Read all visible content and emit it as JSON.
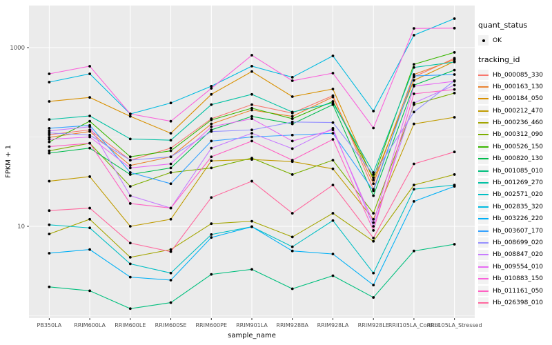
{
  "chart_data": {
    "type": "line",
    "title": "",
    "xlabel": "sample_name",
    "ylabel": "FPKM + 1",
    "y_scale": "log10",
    "y_ticks": [
      10,
      1000
    ],
    "y_minor_gridlines": [
      1,
      100
    ],
    "ylim": [
      0.92,
      2950
    ],
    "grid": "white gridlines on gray panel",
    "legend_position": "right",
    "point_marker_color": "#000000",
    "categories": [
      "PB350LA",
      "RRIM600LA",
      "RRIM600LE",
      "RRIM600SE",
      "RRIM600PE",
      "RRIM901LA",
      "RRIM928BA",
      "RRIM928LA",
      "RRIM928LE",
      "RRII105LA_Control",
      "RRII105LA_Stressed"
    ],
    "series": [
      {
        "name": "Hb_000085_330",
        "color": "#F8766D",
        "values": [
          106,
          120,
          55,
          75,
          160,
          230,
          185,
          290,
          26,
          470,
          760
        ]
      },
      {
        "name": "Hb_000163_130",
        "color": "#EA8331",
        "values": [
          99,
          115,
          48,
          60,
          140,
          200,
          170,
          280,
          30,
          500,
          735
        ]
      },
      {
        "name": "Hb_000184_050",
        "color": "#D89000",
        "values": [
          250,
          277,
          170,
          110,
          300,
          540,
          283,
          344,
          33,
          430,
          700
        ]
      },
      {
        "name": "Hb_000212_470",
        "color": "#C09B00",
        "values": [
          32,
          36,
          10,
          12,
          54,
          56,
          53,
          44,
          12,
          140,
          166
        ]
      },
      {
        "name": "Hb_000236_460",
        "color": "#A3A500",
        "values": [
          8.2,
          12,
          4.5,
          5.5,
          10.7,
          11.4,
          7.6,
          14,
          6.8,
          29,
          38
        ]
      },
      {
        "name": "Hb_000312_090",
        "color": "#7CAE00",
        "values": [
          70,
          85,
          28,
          40,
          45,
          58,
          38,
          55,
          14,
          230,
          310
        ]
      },
      {
        "name": "Hb_000526_150",
        "color": "#39B600",
        "values": [
          88,
          150,
          60,
          70,
          155,
          210,
          160,
          250,
          35,
          650,
          884
        ]
      },
      {
        "name": "Hb_000820_130",
        "color": "#00BB4E",
        "values": [
          66,
          75,
          38,
          45,
          120,
          170,
          140,
          230,
          22,
          380,
          560
        ]
      },
      {
        "name": "Hb_001085_010",
        "color": "#00BF7D",
        "values": [
          2.1,
          1.9,
          1.2,
          1.4,
          2.9,
          3.3,
          2.0,
          2.8,
          1.6,
          5.3,
          6.3
        ]
      },
      {
        "name": "Hb_001269_270",
        "color": "#00C1A3",
        "values": [
          157,
          172,
          95,
          92,
          230,
          300,
          190,
          240,
          40,
          600,
          690
        ]
      },
      {
        "name": "Hb_002571_020",
        "color": "#00BFC4",
        "values": [
          10.4,
          9.6,
          3.8,
          3.0,
          8.1,
          9.9,
          5.9,
          11.6,
          3.0,
          26,
          29
        ]
      },
      {
        "name": "Hb_002835_320",
        "color": "#00BAE0",
        "values": [
          411,
          509,
          181,
          240,
          370,
          620,
          466,
          808,
          195,
          1378,
          2110
        ]
      },
      {
        "name": "Hb_003226_220",
        "color": "#00B0F6",
        "values": [
          5.0,
          5.5,
          2.7,
          2.5,
          7.5,
          9.9,
          5.3,
          4.9,
          2.2,
          19,
          28
        ]
      },
      {
        "name": "Hb_003607_170",
        "color": "#35A2FF",
        "values": [
          125,
          135,
          40,
          30,
          90,
          100,
          105,
          110,
          25,
          482,
          500
        ]
      },
      {
        "name": "Hb_008699_020",
        "color": "#9590FF",
        "values": [
          111,
          105,
          55,
          60,
          115,
          120,
          147,
          145,
          38,
          190,
          427
        ]
      },
      {
        "name": "Hb_008847_020",
        "color": "#C77CFF",
        "values": [
          117,
          130,
          22,
          16,
          75,
          110,
          74,
          125,
          10,
          240,
          380
        ]
      },
      {
        "name": "Hb_009554_010",
        "color": "#E76BF3",
        "values": [
          94,
          100,
          45,
          50,
          130,
          160,
          90,
          120,
          11,
          370,
          420
        ]
      },
      {
        "name": "Hb_010883_150",
        "color": "#FA62DB",
        "values": [
          509,
          619,
          181,
          150,
          350,
          822,
          426,
          518,
          126,
          1640,
          1650
        ]
      },
      {
        "name": "Hb_011161_050",
        "color": "#FF61C3",
        "values": [
          78,
          85,
          18,
          16,
          60,
          90,
          55,
          94,
          9,
          304,
          340
        ]
      },
      {
        "name": "Hb_026398_010",
        "color": "#FF689E",
        "values": [
          15,
          16,
          6.5,
          5.2,
          21,
          32,
          14,
          29,
          7.4,
          50,
          68
        ]
      }
    ]
  },
  "legend": {
    "quant_status": {
      "title": "quant_status",
      "items": [
        {
          "label": "OK",
          "marker": "point"
        }
      ]
    },
    "tracking_id": {
      "title": "tracking_id"
    }
  },
  "colors": {
    "figure_bg": "#FFFFFF",
    "panel_bg": "#EBEBEB",
    "grid": "#FFFFFF",
    "tick_label": "#4D4D4D",
    "axis_title": "#000000",
    "legend_key_bg": "#F2F2F2",
    "point": "#000000"
  }
}
